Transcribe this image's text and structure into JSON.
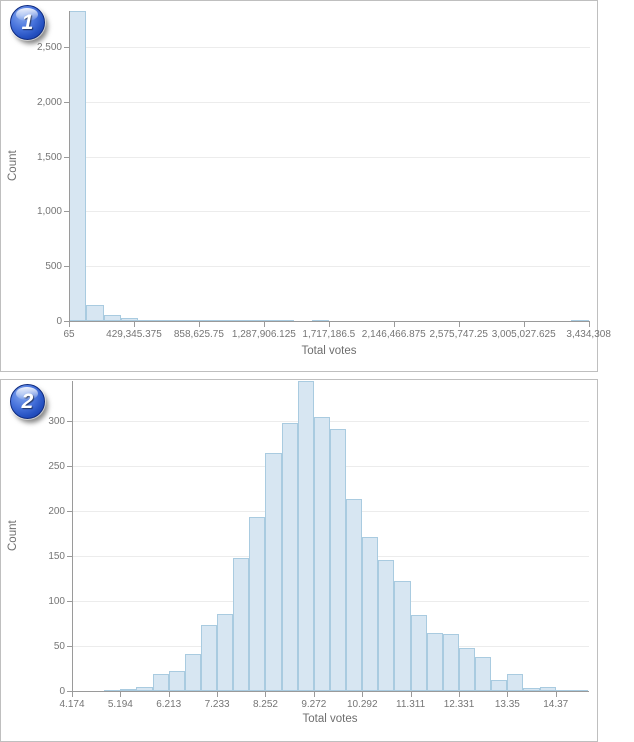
{
  "panels": [
    {
      "badge": "1",
      "xlabel": "Total votes",
      "ylabel": "Count"
    },
    {
      "badge": "2",
      "xlabel": "Total votes",
      "ylabel": "Count"
    }
  ],
  "chart_data": [
    {
      "type": "bar",
      "title": "",
      "xlabel": "Total votes",
      "ylabel": "Count",
      "bin_start": 65,
      "bin_width": 114474.766,
      "values": [
        2830,
        150,
        55,
        27,
        5,
        4,
        3,
        2,
        2,
        1,
        1,
        1,
        1,
        0,
        1,
        0,
        0,
        0,
        0,
        0,
        0,
        0,
        0,
        0,
        0,
        0,
        0,
        0,
        0,
        1
      ],
      "xlim": [
        65,
        3436500
      ],
      "ylim": [
        0,
        2830
      ],
      "grid": "horizontal",
      "legend": "none",
      "xticks": [
        {
          "v": 65,
          "label": "65"
        },
        {
          "v": 429345.375,
          "label": "429,345.375"
        },
        {
          "v": 858625.75,
          "label": "858,625.75"
        },
        {
          "v": 1287906.125,
          "label": "1,287,906.125"
        },
        {
          "v": 1717186.5,
          "label": "1,717,186.5"
        },
        {
          "v": 2146466.875,
          "label": "2,146,466.875"
        },
        {
          "v": 2575747.25,
          "label": "2,575,747.25"
        },
        {
          "v": 3005027.625,
          "label": "3,005,027.625"
        },
        {
          "v": 3434308,
          "label": "3,434,308"
        }
      ],
      "yticks": [
        {
          "v": 0,
          "label": "0"
        },
        {
          "v": 500,
          "label": "500"
        },
        {
          "v": 1000,
          "label": "1,000"
        },
        {
          "v": 1500,
          "label": "1,500"
        },
        {
          "v": 2000,
          "label": "2,000"
        },
        {
          "v": 2500,
          "label": "2,500"
        }
      ]
    },
    {
      "type": "bar",
      "title": "",
      "xlabel": "Total votes",
      "ylabel": "Count",
      "bin_start": 4.174,
      "bin_width": 0.33987,
      "values": [
        0,
        0,
        1,
        2,
        5,
        19,
        22,
        41,
        73,
        86,
        148,
        194,
        265,
        298,
        345,
        305,
        292,
        214,
        171,
        146,
        122,
        85,
        65,
        63,
        48,
        38,
        12,
        19,
        3,
        4,
        1,
        1
      ],
      "xlim": [
        4.174,
        15.05
      ],
      "ylim": [
        0,
        345
      ],
      "grid": "horizontal",
      "legend": "none",
      "xticks": [
        {
          "v": 4.174,
          "label": "4.174"
        },
        {
          "v": 5.1936,
          "label": "5.194"
        },
        {
          "v": 6.2132,
          "label": "6.213"
        },
        {
          "v": 7.2328,
          "label": "7.233"
        },
        {
          "v": 8.2524,
          "label": "8.252"
        },
        {
          "v": 9.272,
          "label": "9.272"
        },
        {
          "v": 10.2916,
          "label": "10.292"
        },
        {
          "v": 11.3112,
          "label": "11.311"
        },
        {
          "v": 12.3308,
          "label": "12.331"
        },
        {
          "v": 13.3504,
          "label": "13.35"
        },
        {
          "v": 14.37,
          "label": "14.37"
        }
      ],
      "yticks": [
        {
          "v": 0,
          "label": "0"
        },
        {
          "v": 50,
          "label": "50"
        },
        {
          "v": 100,
          "label": "100"
        },
        {
          "v": 150,
          "label": "150"
        },
        {
          "v": 200,
          "label": "200"
        },
        {
          "v": 250,
          "label": "250"
        },
        {
          "v": 300,
          "label": "300"
        }
      ]
    }
  ],
  "colors": {
    "bar_fill": "#d7e6f2",
    "bar_stroke": "#a9cbe0",
    "axis": "#9a9a9a",
    "grid": "#ececec",
    "tick_label": "#757575",
    "axis_title": "#6e6e6e",
    "badge_blue": "#2450c0",
    "panel_border": "#bfbfbf"
  }
}
